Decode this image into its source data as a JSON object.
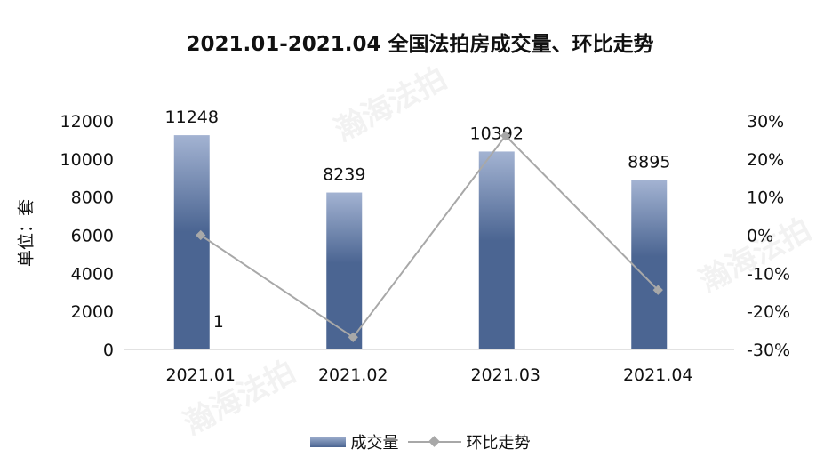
{
  "watermark_text": "瀚海法拍",
  "colors": {
    "bar_top": "#a3b3d2",
    "bar_bottom": "#4b6592",
    "line": "#a8a8a8",
    "axis": "#d9d9d9",
    "text": "#111111"
  },
  "chart_data": {
    "type": "bar",
    "title": "2021.01-2021.04 全国法拍房成交量、环比走势",
    "ylabel": "单位：套",
    "xlabel": "",
    "categories": [
      "2021.01",
      "2021.02",
      "2021.03",
      "2021.04"
    ],
    "ylim": [
      0,
      12000
    ],
    "yticks": [
      "0",
      "2000",
      "4000",
      "6000",
      "8000",
      "10000",
      "12000"
    ],
    "y2lim": [
      -30,
      30
    ],
    "y2ticks": [
      "-30%",
      "-20%",
      "-10%",
      "0%",
      "10%",
      "20%",
      "30%"
    ],
    "series": [
      {
        "name": "成交量",
        "type": "bar",
        "axis": "left",
        "values": [
          11248,
          8239,
          10392,
          8895
        ],
        "labels": [
          "11248",
          "8239",
          "10392",
          "8895"
        ]
      },
      {
        "name": "环比走势",
        "type": "line",
        "axis": "right",
        "values": [
          0,
          -26.8,
          26.1,
          -14.4
        ]
      }
    ],
    "annotations": [
      {
        "text": "1",
        "x": "2021.01",
        "y": 600
      }
    ],
    "legend_position": "bottom",
    "grid": false
  }
}
